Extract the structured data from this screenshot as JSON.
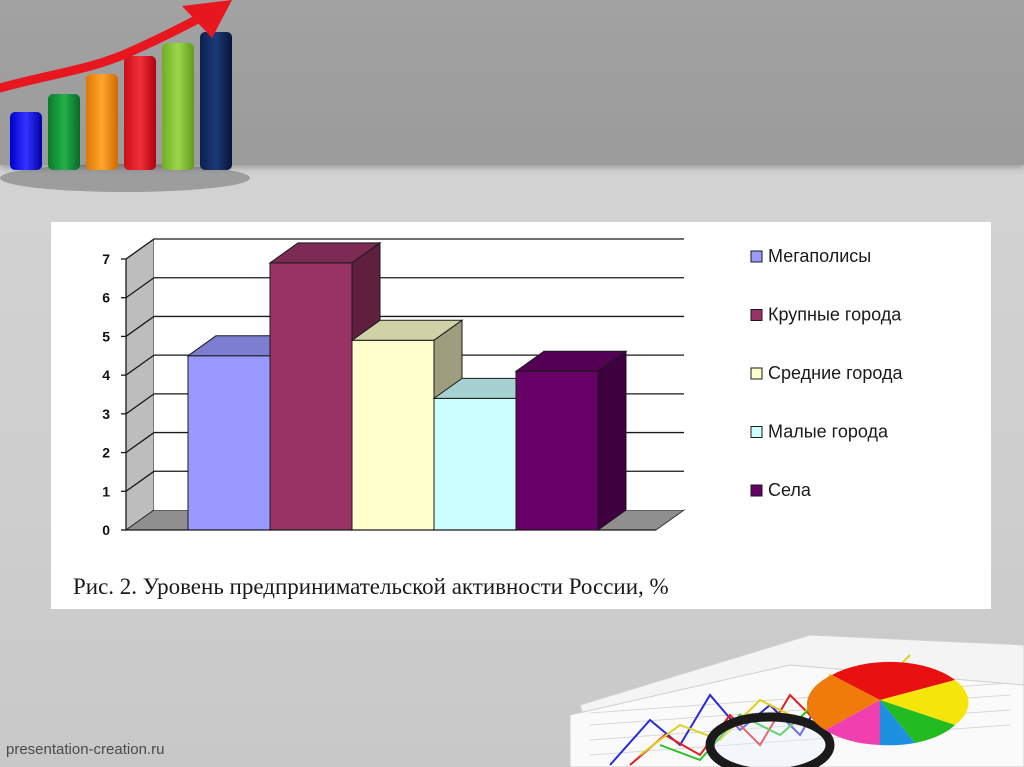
{
  "footer": {
    "site": "presentation-creation.ru"
  },
  "caption": "Рис. 2. Уровень предпринимательской активности России, %",
  "chart_data": {
    "type": "bar",
    "style": "3d",
    "title": "",
    "xlabel": "",
    "ylabel": "",
    "ylim": [
      0,
      7
    ],
    "yticks": [
      "0",
      "1",
      "2",
      "3",
      "4",
      "5",
      "6",
      "7"
    ],
    "grid": true,
    "legend_position": "right",
    "series": [
      {
        "name": "Мегаполисы",
        "values": [
          4.5
        ],
        "color": "#9999ff"
      },
      {
        "name": "Крупные города",
        "values": [
          6.9
        ],
        "color": "#993366"
      },
      {
        "name": "Средние города",
        "values": [
          4.9
        ],
        "color": "#ffffcc"
      },
      {
        "name": "Малые города",
        "values": [
          3.4
        ],
        "color": "#ccffff"
      },
      {
        "name": "Села",
        "values": [
          4.1
        ],
        "color": "#660066"
      }
    ]
  },
  "decor": {
    "top_left": "bar-chart-growth-arrow-icon",
    "bottom_right": "charts-magnifier-pie-illustration"
  }
}
